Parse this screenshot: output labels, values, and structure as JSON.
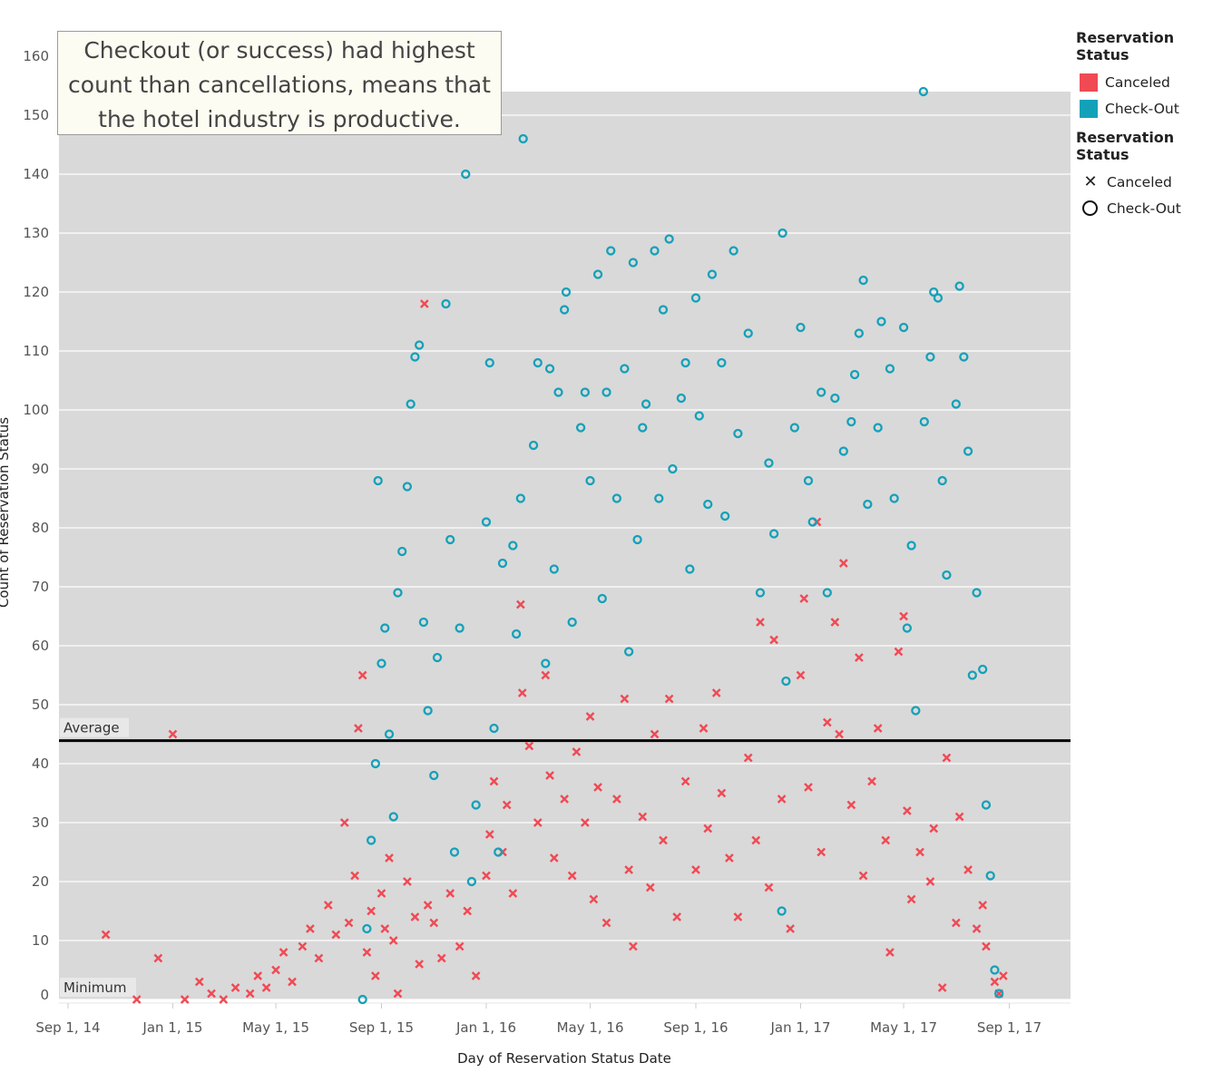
{
  "annotation": "Checkout (or success) had highest count than cancellations, means that the hotel industry is productive.",
  "legend_color": {
    "title": "Reservation Status",
    "items": [
      {
        "label": "Canceled",
        "color": "#f04a55"
      },
      {
        "label": "Check-Out",
        "color": "#13a1b9"
      }
    ]
  },
  "legend_shape": {
    "title": "Reservation Status",
    "items": [
      {
        "label": "Canceled",
        "shape": "x-mark"
      },
      {
        "label": "Check-Out",
        "shape": "circle"
      }
    ]
  },
  "chart_data": {
    "type": "scatter",
    "xlabel": "Day of Reservation Status Date",
    "ylabel": "Count of Reservation Status",
    "ylim": [
      0,
      160
    ],
    "yticks": [
      0,
      10,
      20,
      30,
      40,
      50,
      60,
      70,
      80,
      90,
      100,
      110,
      120,
      130,
      140,
      150,
      160
    ],
    "xticks": [
      {
        "date": "2014-09-01",
        "label": "Sep 1, 14"
      },
      {
        "date": "2015-01-01",
        "label": "Jan 1, 15"
      },
      {
        "date": "2015-05-01",
        "label": "May 1, 15"
      },
      {
        "date": "2015-09-01",
        "label": "Sep 1, 15"
      },
      {
        "date": "2016-01-01",
        "label": "Jan 1, 16"
      },
      {
        "date": "2016-05-01",
        "label": "May 1, 16"
      },
      {
        "date": "2016-09-01",
        "label": "Sep 1, 16"
      },
      {
        "date": "2017-01-01",
        "label": "Jan 1, 17"
      },
      {
        "date": "2017-05-01",
        "label": "May 1, 17"
      },
      {
        "date": "2017-09-01",
        "label": "Sep 1, 17"
      }
    ],
    "grid": true,
    "reference_lines": [
      {
        "label": "Average",
        "value": 43.9
      },
      {
        "label": "Minimum",
        "value": 0
      }
    ],
    "series": [
      {
        "name": "Canceled",
        "color": "#f04a55",
        "marker": "x",
        "points": [
          [
            "2014-10-15",
            11
          ],
          [
            "2014-11-20",
            0
          ],
          [
            "2014-12-15",
            7
          ],
          [
            "2015-01-01",
            45
          ],
          [
            "2015-01-15",
            0
          ],
          [
            "2015-02-01",
            3
          ],
          [
            "2015-02-15",
            1
          ],
          [
            "2015-03-01",
            0
          ],
          [
            "2015-03-15",
            2
          ],
          [
            "2015-04-01",
            1
          ],
          [
            "2015-04-10",
            4
          ],
          [
            "2015-04-20",
            2
          ],
          [
            "2015-05-01",
            5
          ],
          [
            "2015-05-10",
            8
          ],
          [
            "2015-05-20",
            3
          ],
          [
            "2015-06-01",
            9
          ],
          [
            "2015-06-10",
            12
          ],
          [
            "2015-06-20",
            7
          ],
          [
            "2015-07-01",
            16
          ],
          [
            "2015-07-10",
            11
          ],
          [
            "2015-07-20",
            30
          ],
          [
            "2015-07-25",
            13
          ],
          [
            "2015-08-01",
            21
          ],
          [
            "2015-08-05",
            46
          ],
          [
            "2015-08-10",
            55
          ],
          [
            "2015-08-15",
            8
          ],
          [
            "2015-08-20",
            15
          ],
          [
            "2015-08-25",
            4
          ],
          [
            "2015-09-01",
            18
          ],
          [
            "2015-09-05",
            12
          ],
          [
            "2015-09-10",
            24
          ],
          [
            "2015-09-15",
            10
          ],
          [
            "2015-09-20",
            1
          ],
          [
            "2015-10-01",
            20
          ],
          [
            "2015-10-10",
            14
          ],
          [
            "2015-10-15",
            6
          ],
          [
            "2015-10-21",
            118
          ],
          [
            "2015-10-25",
            16
          ],
          [
            "2015-11-01",
            13
          ],
          [
            "2015-11-10",
            7
          ],
          [
            "2015-11-20",
            18
          ],
          [
            "2015-12-01",
            9
          ],
          [
            "2015-12-10",
            15
          ],
          [
            "2015-12-20",
            4
          ],
          [
            "2016-01-01",
            21
          ],
          [
            "2016-01-05",
            28
          ],
          [
            "2016-01-10",
            37
          ],
          [
            "2016-01-20",
            25
          ],
          [
            "2016-01-25",
            33
          ],
          [
            "2016-02-01",
            18
          ],
          [
            "2016-02-10",
            67
          ],
          [
            "2016-02-12",
            52
          ],
          [
            "2016-02-20",
            43
          ],
          [
            "2016-03-01",
            30
          ],
          [
            "2016-03-10",
            55
          ],
          [
            "2016-03-15",
            38
          ],
          [
            "2016-03-20",
            24
          ],
          [
            "2016-04-01",
            34
          ],
          [
            "2016-04-10",
            21
          ],
          [
            "2016-04-15",
            42
          ],
          [
            "2016-04-25",
            30
          ],
          [
            "2016-05-01",
            48
          ],
          [
            "2016-05-05",
            17
          ],
          [
            "2016-05-10",
            36
          ],
          [
            "2016-05-20",
            13
          ],
          [
            "2016-06-01",
            34
          ],
          [
            "2016-06-10",
            51
          ],
          [
            "2016-06-15",
            22
          ],
          [
            "2016-06-20",
            9
          ],
          [
            "2016-07-01",
            31
          ],
          [
            "2016-07-10",
            19
          ],
          [
            "2016-07-15",
            45
          ],
          [
            "2016-07-25",
            27
          ],
          [
            "2016-08-01",
            51
          ],
          [
            "2016-08-10",
            14
          ],
          [
            "2016-08-20",
            37
          ],
          [
            "2016-09-01",
            22
          ],
          [
            "2016-09-10",
            46
          ],
          [
            "2016-09-15",
            29
          ],
          [
            "2016-09-25",
            52
          ],
          [
            "2016-10-01",
            35
          ],
          [
            "2016-10-10",
            24
          ],
          [
            "2016-10-20",
            14
          ],
          [
            "2016-11-01",
            41
          ],
          [
            "2016-11-10",
            27
          ],
          [
            "2016-11-15",
            64
          ],
          [
            "2016-11-25",
            19
          ],
          [
            "2016-12-01",
            61
          ],
          [
            "2016-12-10",
            34
          ],
          [
            "2016-12-20",
            12
          ],
          [
            "2017-01-01",
            55
          ],
          [
            "2017-01-05",
            68
          ],
          [
            "2017-01-10",
            36
          ],
          [
            "2017-01-20",
            81
          ],
          [
            "2017-01-25",
            25
          ],
          [
            "2017-02-01",
            47
          ],
          [
            "2017-02-10",
            64
          ],
          [
            "2017-02-15",
            45
          ],
          [
            "2017-02-20",
            74
          ],
          [
            "2017-03-01",
            33
          ],
          [
            "2017-03-10",
            58
          ],
          [
            "2017-03-15",
            21
          ],
          [
            "2017-03-25",
            37
          ],
          [
            "2017-04-01",
            46
          ],
          [
            "2017-04-10",
            27
          ],
          [
            "2017-04-15",
            8
          ],
          [
            "2017-04-25",
            59
          ],
          [
            "2017-05-01",
            65
          ],
          [
            "2017-05-05",
            32
          ],
          [
            "2017-05-10",
            17
          ],
          [
            "2017-05-20",
            25
          ],
          [
            "2017-06-01",
            20
          ],
          [
            "2017-06-05",
            29
          ],
          [
            "2017-06-15",
            2
          ],
          [
            "2017-06-20",
            41
          ],
          [
            "2017-07-01",
            13
          ],
          [
            "2017-07-05",
            31
          ],
          [
            "2017-07-15",
            22
          ],
          [
            "2017-07-25",
            12
          ],
          [
            "2017-08-01",
            16
          ],
          [
            "2017-08-05",
            9
          ],
          [
            "2017-08-15",
            3
          ],
          [
            "2017-08-20",
            1
          ],
          [
            "2017-08-25",
            4
          ]
        ]
      },
      {
        "name": "Check-Out",
        "color": "#13a1b9",
        "marker": "o",
        "points": [
          [
            "2015-08-10",
            0
          ],
          [
            "2015-08-15",
            12
          ],
          [
            "2015-08-20",
            27
          ],
          [
            "2015-08-25",
            40
          ],
          [
            "2015-08-28",
            88
          ],
          [
            "2015-09-01",
            57
          ],
          [
            "2015-09-05",
            63
          ],
          [
            "2015-09-10",
            45
          ],
          [
            "2015-09-15",
            31
          ],
          [
            "2015-09-20",
            69
          ],
          [
            "2015-09-25",
            76
          ],
          [
            "2015-10-01",
            87
          ],
          [
            "2015-10-05",
            101
          ],
          [
            "2015-10-10",
            109
          ],
          [
            "2015-10-15",
            111
          ],
          [
            "2015-10-20",
            64
          ],
          [
            "2015-10-25",
            49
          ],
          [
            "2015-11-01",
            38
          ],
          [
            "2015-11-05",
            58
          ],
          [
            "2015-11-15",
            118
          ],
          [
            "2015-11-20",
            78
          ],
          [
            "2015-11-25",
            25
          ],
          [
            "2015-12-01",
            63
          ],
          [
            "2015-12-08",
            140
          ],
          [
            "2015-12-15",
            20
          ],
          [
            "2015-12-20",
            33
          ],
          [
            "2016-01-01",
            81
          ],
          [
            "2016-01-05",
            108
          ],
          [
            "2016-01-10",
            46
          ],
          [
            "2016-01-15",
            25
          ],
          [
            "2016-01-20",
            74
          ],
          [
            "2016-02-01",
            77
          ],
          [
            "2016-02-05",
            62
          ],
          [
            "2016-02-10",
            85
          ],
          [
            "2016-02-13",
            146
          ],
          [
            "2016-02-25",
            94
          ],
          [
            "2016-03-01",
            108
          ],
          [
            "2016-03-10",
            57
          ],
          [
            "2016-03-15",
            107
          ],
          [
            "2016-03-20",
            73
          ],
          [
            "2016-03-25",
            103
          ],
          [
            "2016-04-01",
            117
          ],
          [
            "2016-04-03",
            120
          ],
          [
            "2016-04-10",
            64
          ],
          [
            "2016-04-20",
            97
          ],
          [
            "2016-04-25",
            103
          ],
          [
            "2016-05-01",
            88
          ],
          [
            "2016-05-10",
            123
          ],
          [
            "2016-05-15",
            68
          ],
          [
            "2016-05-20",
            103
          ],
          [
            "2016-05-25",
            127
          ],
          [
            "2016-06-01",
            85
          ],
          [
            "2016-06-10",
            107
          ],
          [
            "2016-06-15",
            59
          ],
          [
            "2016-06-20",
            125
          ],
          [
            "2016-06-25",
            78
          ],
          [
            "2016-07-01",
            97
          ],
          [
            "2016-07-05",
            101
          ],
          [
            "2016-07-15",
            127
          ],
          [
            "2016-07-20",
            85
          ],
          [
            "2016-07-25",
            117
          ],
          [
            "2016-08-01",
            129
          ],
          [
            "2016-08-05",
            90
          ],
          [
            "2016-08-15",
            102
          ],
          [
            "2016-08-20",
            108
          ],
          [
            "2016-08-25",
            73
          ],
          [
            "2016-09-01",
            119
          ],
          [
            "2016-09-05",
            99
          ],
          [
            "2016-09-15",
            84
          ],
          [
            "2016-09-20",
            123
          ],
          [
            "2016-10-01",
            108
          ],
          [
            "2016-10-05",
            82
          ],
          [
            "2016-10-15",
            127
          ],
          [
            "2016-10-20",
            96
          ],
          [
            "2016-11-01",
            113
          ],
          [
            "2016-11-15",
            69
          ],
          [
            "2016-11-25",
            91
          ],
          [
            "2016-12-01",
            79
          ],
          [
            "2016-12-10",
            15
          ],
          [
            "2016-12-11",
            130
          ],
          [
            "2016-12-15",
            54
          ],
          [
            "2016-12-25",
            97
          ],
          [
            "2017-01-01",
            114
          ],
          [
            "2017-01-10",
            88
          ],
          [
            "2017-01-15",
            81
          ],
          [
            "2017-01-25",
            103
          ],
          [
            "2017-02-01",
            69
          ],
          [
            "2017-02-10",
            102
          ],
          [
            "2017-02-20",
            93
          ],
          [
            "2017-03-01",
            98
          ],
          [
            "2017-03-05",
            106
          ],
          [
            "2017-03-10",
            113
          ],
          [
            "2017-03-15",
            122
          ],
          [
            "2017-03-20",
            84
          ],
          [
            "2017-04-01",
            97
          ],
          [
            "2017-04-05",
            115
          ],
          [
            "2017-04-15",
            107
          ],
          [
            "2017-04-20",
            85
          ],
          [
            "2017-05-01",
            114
          ],
          [
            "2017-05-05",
            63
          ],
          [
            "2017-05-10",
            77
          ],
          [
            "2017-05-15",
            49
          ],
          [
            "2017-05-24",
            154
          ],
          [
            "2017-05-25",
            98
          ],
          [
            "2017-06-01",
            109
          ],
          [
            "2017-06-05",
            120
          ],
          [
            "2017-06-10",
            119
          ],
          [
            "2017-06-15",
            88
          ],
          [
            "2017-06-20",
            72
          ],
          [
            "2017-07-01",
            101
          ],
          [
            "2017-07-05",
            121
          ],
          [
            "2017-07-10",
            109
          ],
          [
            "2017-07-15",
            93
          ],
          [
            "2017-07-20",
            55
          ],
          [
            "2017-07-25",
            69
          ],
          [
            "2017-08-01",
            56
          ],
          [
            "2017-08-05",
            33
          ],
          [
            "2017-08-10",
            21
          ],
          [
            "2017-08-15",
            5
          ],
          [
            "2017-08-20",
            1
          ]
        ]
      }
    ]
  }
}
